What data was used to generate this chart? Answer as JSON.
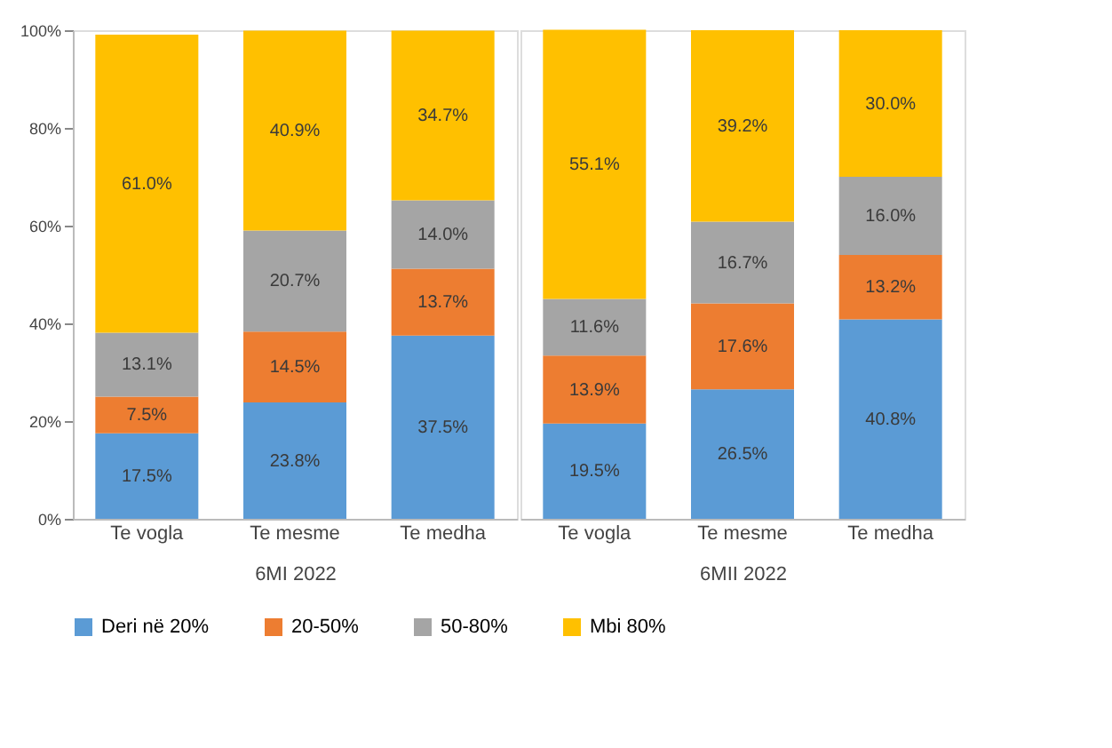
{
  "chart_data": [
    {
      "type": "bar",
      "stacked": true,
      "xlabel": "6MI 2022",
      "categories": [
        "Te vogla",
        "Te mesme",
        "Te medha"
      ],
      "ylim": [
        0,
        100
      ],
      "yticks": [
        {
          "value": 0,
          "label": "0%"
        },
        {
          "value": 20,
          "label": "20%"
        },
        {
          "value": 40,
          "label": "40%"
        },
        {
          "value": 60,
          "label": "60%"
        },
        {
          "value": 80,
          "label": "80%"
        },
        {
          "value": 100,
          "label": "100%"
        }
      ],
      "legend": "bottom",
      "grid": false,
      "series": [
        {
          "name": "Deri në 20%",
          "color": "#5b9bd5",
          "values": [
            17.5,
            23.8,
            37.5
          ],
          "value_labels": [
            "17.5%",
            "23.8%",
            "37.5%"
          ]
        },
        {
          "name": "20-50%",
          "color": "#ed7d31",
          "values": [
            7.5,
            14.5,
            13.7
          ],
          "value_labels": [
            "7.5%",
            "14.5%",
            "13.7%"
          ]
        },
        {
          "name": "50-80%",
          "color": "#a5a5a5",
          "values": [
            13.1,
            20.7,
            14.0
          ],
          "value_labels": [
            "13.1%",
            "20.7%",
            "14.0%"
          ]
        },
        {
          "name": "Mbi 80%",
          "color": "#ffc000",
          "values": [
            61.0,
            40.9,
            34.7
          ],
          "value_labels": [
            "61.0%",
            "40.9%",
            "34.7%"
          ]
        }
      ]
    },
    {
      "type": "bar",
      "stacked": true,
      "xlabel": "6MII 2022",
      "categories": [
        "Te vogla",
        "Te mesme",
        "Te medha"
      ],
      "ylim": [
        0,
        100
      ],
      "yticks": [
        {
          "value": 0,
          "label": "0%"
        },
        {
          "value": 20,
          "label": "20%"
        },
        {
          "value": 40,
          "label": "40%"
        },
        {
          "value": 60,
          "label": "60%"
        },
        {
          "value": 80,
          "label": "80%"
        },
        {
          "value": 100,
          "label": "100%"
        }
      ],
      "tick_labels": "x",
      "legend": "bottom",
      "grid": false,
      "series": [
        {
          "name": "Deri në 20%",
          "color": "#5b9bd5",
          "values": [
            19.5,
            26.5,
            40.8
          ],
          "value_labels": [
            "19.5%",
            "26.5%",
            "40.8%"
          ]
        },
        {
          "name": "20-50%",
          "color": "#ed7d31",
          "values": [
            13.9,
            17.6,
            13.2
          ],
          "value_labels": [
            "13.9%",
            "17.6%",
            "13.2%"
          ]
        },
        {
          "name": "50-80%",
          "color": "#a5a5a5",
          "values": [
            11.6,
            16.7,
            16.0
          ],
          "value_labels": [
            "11.6%",
            "16.7%",
            "16.0%"
          ]
        },
        {
          "name": "Mbi 80%",
          "color": "#ffc000",
          "values": [
            55.1,
            39.2,
            30.0
          ],
          "value_labels": [
            "55.1%",
            "39.2%",
            "30.0%"
          ]
        }
      ]
    }
  ]
}
